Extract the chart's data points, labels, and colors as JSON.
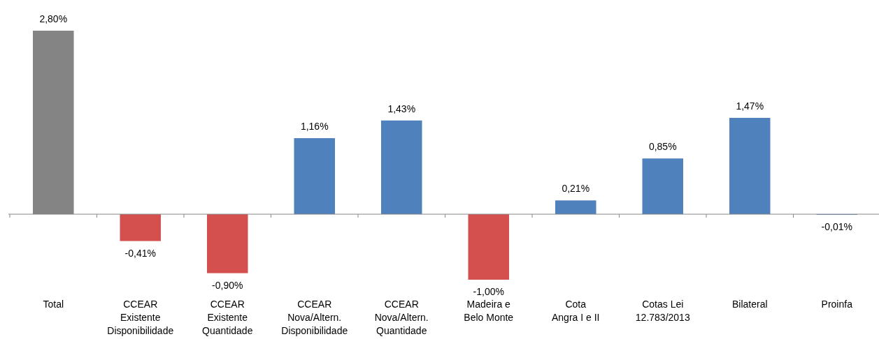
{
  "chart_data": {
    "type": "bar",
    "categories": [
      "Total",
      "CCEAR\nExistente\nDisponibilidade",
      "CCEAR\nExistente\nQuantidade",
      "CCEAR\nNova/Altern.\nDisponibilidade",
      "CCEAR\nNova/Altern.\nQuantidade",
      "Madeira e\nBelo Monte",
      "Cota\nAngra I e II",
      "Cotas Lei\n12.783/2013",
      "Bilateral",
      "Proinfa"
    ],
    "values": [
      2.8,
      -0.41,
      -0.9,
      1.16,
      1.43,
      -1.0,
      0.21,
      0.85,
      1.47,
      -0.01
    ],
    "value_labels": [
      "2,80%",
      "-0,41%",
      "-0,90%",
      "1,16%",
      "1,43%",
      "-1,00%",
      "0,21%",
      "0,85%",
      "1,47%",
      "-0,01%"
    ],
    "colors": [
      "#848484",
      "#d4504f",
      "#d4504f",
      "#4f81bd",
      "#4f81bd",
      "#d4504f",
      "#4f81bd",
      "#4f81bd",
      "#4f81bd",
      "#4f81bd"
    ]
  }
}
